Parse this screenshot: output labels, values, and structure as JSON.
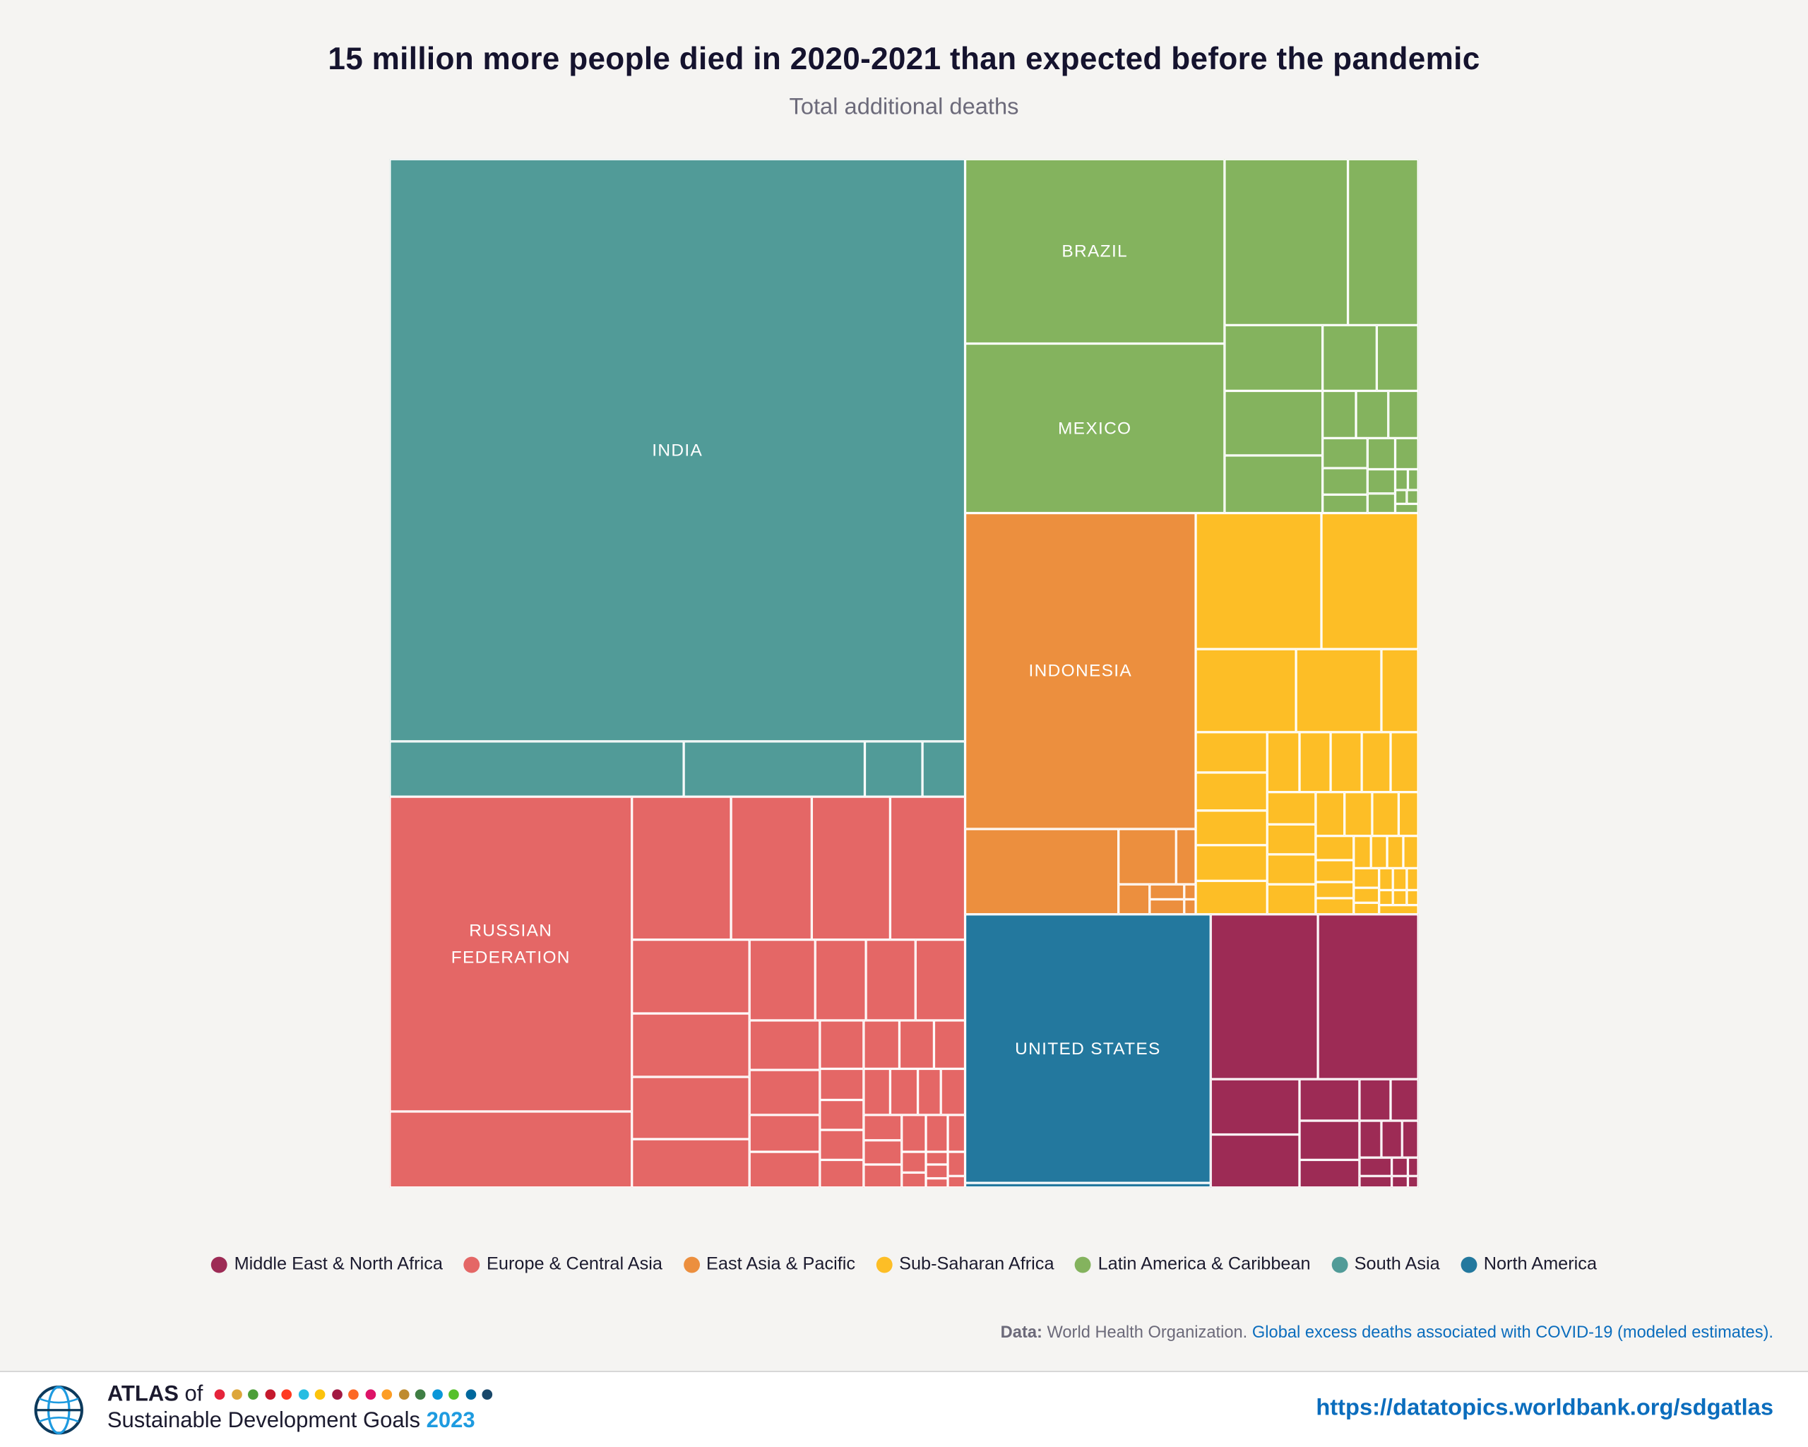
{
  "header": {
    "title": "15 million more people died in 2020-2021 than expected before the pandemic",
    "subtitle": "Total additional deaths"
  },
  "chart_data": {
    "type": "treemap",
    "title": "15 million more people died in 2020-2021 than expected before the pandemic",
    "subtitle": "Total additional deaths",
    "total_label": "15 million",
    "labeled_cells": [
      {
        "label": "INDIA",
        "region": "South Asia"
      },
      {
        "label": "BRAZIL",
        "region": "Latin America & Caribbean"
      },
      {
        "label": "MEXICO",
        "region": "Latin America & Caribbean"
      },
      {
        "label": "INDONESIA",
        "region": "East Asia & Pacific"
      },
      {
        "label": "RUSSIAN FEDERATION",
        "region": "Europe & Central Asia"
      },
      {
        "label": "UNITED STATES",
        "region": "North America"
      }
    ],
    "legend_position": "bottom",
    "legend": [
      {
        "name": "Middle East & North Africa",
        "color": "#9d2b55"
      },
      {
        "name": "Europe & Central Asia",
        "color": "#e46766"
      },
      {
        "name": "East Asia & Pacific",
        "color": "#ec8f3e"
      },
      {
        "name": "Sub-Saharan Africa",
        "color": "#fdbe26"
      },
      {
        "name": "Latin America & Caribbean",
        "color": "#84b35e"
      },
      {
        "name": "South Asia",
        "color": "#519b98"
      },
      {
        "name": "North America",
        "color": "#23789e"
      }
    ]
  },
  "source": {
    "prefix": "Data:",
    "org": "World Health Organization.",
    "link": "Global excess deaths associated with COVID-19 (modeled estimates)."
  },
  "footer": {
    "atlas": "ATLAS",
    "of": "of",
    "sdg": "Sustainable Development Goals",
    "year": "2023",
    "url": "https://datatopics.worldbank.org/sdgatlas",
    "sdg_colors": [
      "#e5243b",
      "#dda63a",
      "#4c9f38",
      "#c5192d",
      "#ff3a21",
      "#26bde2",
      "#fcc30b",
      "#a21942",
      "#fd6925",
      "#dd1367",
      "#fd9d24",
      "#bf8b2e",
      "#3f7e44",
      "#0a97d9",
      "#56c02b",
      "#00689d",
      "#19486a"
    ]
  }
}
